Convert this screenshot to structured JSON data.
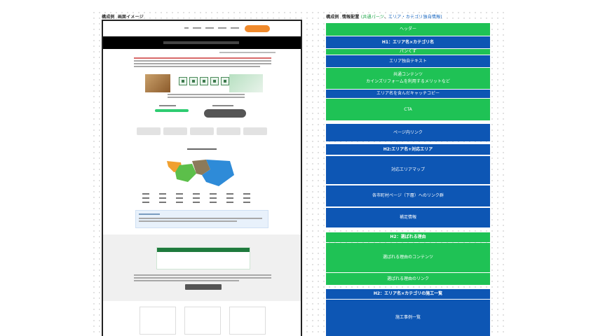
{
  "labels": {
    "left_prefix": "構成例",
    "left_title": "画面イメージ",
    "right_prefix": "構成例",
    "right_title": "情報配置",
    "right_common": "(共通パーツ",
    "right_sep": "、",
    "right_unique": "エリア・カテゴリ独自情報)"
  },
  "wireframe": [
    {
      "text": "ヘッダー",
      "color": "green"
    },
    {
      "text": "H1：エリア名×カテゴリ名",
      "color": "blue",
      "bold": true
    },
    {
      "text": "パンくず",
      "color": "green"
    },
    {
      "text": "エリア独自テキスト",
      "color": "blue"
    },
    {
      "text": "共通コンテンツ",
      "text2": "カインズリフォームを利用するメリットなど",
      "color": "green"
    },
    {
      "text": "エリア名を含んだキャッチコピー",
      "color": "blue"
    },
    {
      "text": "CTA",
      "color": "green"
    },
    {
      "text": "ページ内リンク",
      "color": "blue"
    },
    {
      "text": "H2:エリア名+対応エリア",
      "color": "blue",
      "bold": true
    },
    {
      "text": "対応エリアマップ",
      "color": "blue"
    },
    {
      "text": "各市町村ページ（下層）へのリンク群",
      "color": "blue"
    },
    {
      "text": "補足情報",
      "color": "blue"
    },
    {
      "text": "H2：選ばれる理由",
      "color": "green",
      "bold": true
    },
    {
      "text": "選ばれる理由のコンテンツ",
      "color": "green"
    },
    {
      "text": "選ばれる理由のリンク",
      "color": "green"
    },
    {
      "text": "H2：エリア名×カテゴリの施工一覧",
      "color": "blue",
      "bold": true
    },
    {
      "text": "施工事例一覧",
      "color": "blue"
    }
  ],
  "colors": {
    "green": "#1fc255",
    "blue": "#0d56b4",
    "accent_orange": "#f08a2c"
  }
}
